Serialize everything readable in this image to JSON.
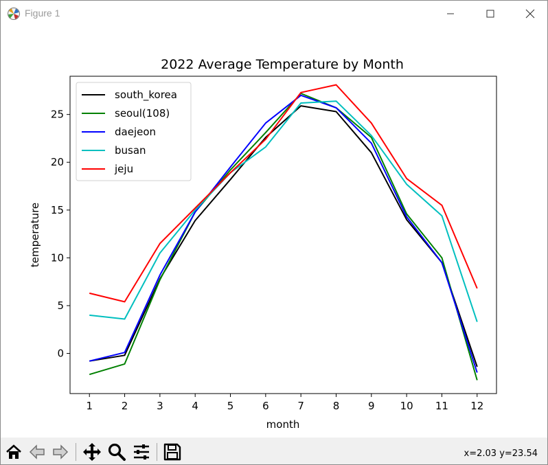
{
  "window": {
    "title": "Figure 1",
    "minimize_icon": "minimize-icon",
    "maximize_icon": "maximize-icon",
    "close_icon": "close-icon"
  },
  "toolbar": {
    "buttons": [
      {
        "name": "home-button",
        "icon": "home-icon"
      },
      {
        "name": "back-button",
        "icon": "back-arrow-icon"
      },
      {
        "name": "forward-button",
        "icon": "forward-arrow-icon"
      },
      {
        "name": "pan-button",
        "icon": "pan-move-icon"
      },
      {
        "name": "zoom-button",
        "icon": "zoom-magnifier-icon"
      },
      {
        "name": "configure-subplots-button",
        "icon": "sliders-icon"
      },
      {
        "name": "save-button",
        "icon": "floppy-disk-icon"
      }
    ],
    "coords": "x=2.03 y=23.54"
  },
  "chart_data": {
    "type": "line",
    "title": "2022 Average Temperature by Month",
    "xlabel": "month",
    "ylabel": "temperature",
    "x": [
      1,
      2,
      3,
      4,
      5,
      6,
      7,
      8,
      9,
      10,
      11,
      12
    ],
    "xlim": [
      0.45,
      12.55
    ],
    "ylim": [
      -4.2,
      29.0
    ],
    "xticks": [
      1,
      2,
      3,
      4,
      5,
      6,
      7,
      8,
      9,
      10,
      11,
      12
    ],
    "yticks": [
      0,
      5,
      10,
      15,
      20,
      25
    ],
    "grid": false,
    "legend_position": "upper-left",
    "series": [
      {
        "name": "south_korea",
        "color": "#000000",
        "values": [
          -0.8,
          -0.2,
          7.8,
          13.9,
          18.2,
          22.6,
          25.9,
          25.3,
          21.0,
          14.0,
          9.5,
          -1.4
        ]
      },
      {
        "name": "seoul(108)",
        "color": "#008000",
        "values": [
          -2.2,
          -1.1,
          7.7,
          14.8,
          19.2,
          23.1,
          27.2,
          25.7,
          22.6,
          14.6,
          10.0,
          -2.8
        ]
      },
      {
        "name": "daejeon",
        "color": "#0000ff",
        "values": [
          -0.8,
          0.1,
          8.2,
          14.8,
          19.5,
          24.1,
          27.0,
          25.7,
          22.0,
          14.3,
          9.5,
          -2.0
        ]
      },
      {
        "name": "busan",
        "color": "#00bfbf",
        "values": [
          4.0,
          3.6,
          10.5,
          15.0,
          18.9,
          21.6,
          26.2,
          26.4,
          22.8,
          17.7,
          14.4,
          3.3
        ]
      },
      {
        "name": "jeju",
        "color": "#ff0000",
        "values": [
          6.3,
          5.4,
          11.5,
          15.2,
          18.9,
          22.4,
          27.3,
          28.1,
          24.1,
          18.3,
          15.5,
          6.8
        ]
      }
    ]
  }
}
